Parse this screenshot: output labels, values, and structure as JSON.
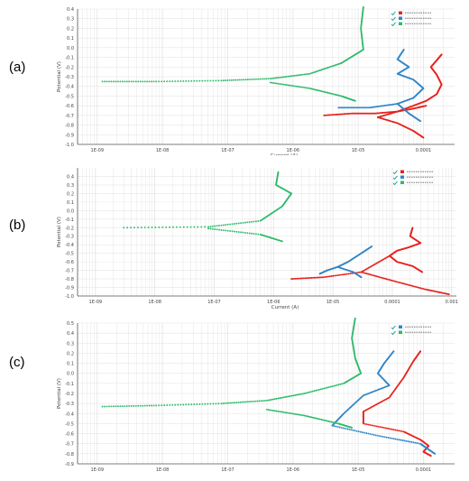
{
  "panels": [
    {
      "label": "(a)"
    },
    {
      "label": "(b)"
    },
    {
      "label": "(c)"
    }
  ],
  "colors": {
    "red": "#e8231e",
    "blue": "#2f86c9",
    "green": "#2dba6a",
    "grid": "#e6e6e6",
    "axis": "#555555"
  },
  "chart_data": [
    {
      "type": "line",
      "ylabel": "Potential (V)",
      "xlabel": "Current (A)",
      "x_scale": "log",
      "xlim": [
        5e-10,
        0.0003
      ],
      "ylim": [
        -1.0,
        0.4
      ],
      "x_ticks": [
        1e-09,
        1e-08,
        1e-07,
        1e-06,
        1e-05,
        0.0001
      ],
      "x_tick_labels": [
        "1E-09",
        "1E-08",
        "1E-07",
        "1E-06",
        "1E-05",
        "0.0001"
      ],
      "y_ticks": [
        0.4,
        0.3,
        0.2,
        0.1,
        0.0,
        -0.1,
        -0.2,
        -0.3,
        -0.4,
        -0.5,
        -0.6,
        -0.7,
        -0.8,
        -0.9,
        -1.0
      ],
      "legend_position": "top-right",
      "series": [
        {
          "color": "red",
          "points": [
            [
              2e-05,
              -0.72
            ],
            [
              4e-05,
              -0.66
            ],
            [
              7e-05,
              -0.6
            ],
            [
              0.00011,
              -0.55
            ],
            [
              0.00016,
              -0.48
            ],
            [
              0.00019,
              -0.38
            ],
            [
              0.00016,
              -0.28
            ],
            [
              0.00013,
              -0.2
            ],
            [
              0.00016,
              -0.13
            ],
            [
              0.00019,
              -0.07
            ]
          ]
        },
        {
          "color": "red",
          "points": [
            [
              0.00011,
              -0.6
            ],
            [
              7e-05,
              -0.63
            ],
            [
              4e-05,
              -0.66
            ],
            [
              1.8e-05,
              -0.68
            ],
            [
              8e-06,
              -0.68
            ],
            [
              3e-06,
              -0.7
            ]
          ]
        },
        {
          "color": "red",
          "points": [
            [
              2e-05,
              -0.72
            ],
            [
              4e-05,
              -0.78
            ],
            [
              7e-05,
              -0.86
            ],
            [
              0.0001,
              -0.93
            ]
          ]
        },
        {
          "color": "blue",
          "points": [
            [
              5e-05,
              -0.02
            ],
            [
              4e-05,
              -0.12
            ],
            [
              6e-05,
              -0.2
            ],
            [
              4e-05,
              -0.27
            ],
            [
              7e-05,
              -0.33
            ],
            [
              0.0001,
              -0.42
            ],
            [
              7e-05,
              -0.52
            ],
            [
              4e-05,
              -0.58
            ],
            [
              1.5e-05,
              -0.62
            ],
            [
              5e-06,
              -0.62
            ]
          ]
        },
        {
          "color": "blue",
          "points": [
            [
              4e-05,
              -0.58
            ],
            [
              6e-05,
              -0.68
            ],
            [
              9e-05,
              -0.76
            ]
          ]
        },
        {
          "color": "green",
          "points": [
            [
              1.2e-05,
              0.42
            ],
            [
              1.1e-05,
              0.2
            ],
            [
              1.2e-05,
              -0.02
            ],
            [
              5.5e-06,
              -0.16
            ],
            [
              1.8e-06,
              -0.27
            ],
            [
              4.5e-07,
              -0.32
            ],
            [
              8e-08,
              -0.34
            ],
            [
              8e-09,
              -0.35
            ],
            [
              1.2e-09,
              -0.35
            ]
          ]
        },
        {
          "color": "green",
          "points": [
            [
              4.5e-07,
              -0.36
            ],
            [
              1.8e-06,
              -0.42
            ],
            [
              5.5e-06,
              -0.5
            ],
            [
              9e-06,
              -0.55
            ]
          ]
        }
      ]
    },
    {
      "type": "line",
      "ylabel": "Potential (V)",
      "xlabel": "Current (A)",
      "x_scale": "log",
      "xlim": [
        5e-10,
        0.0012
      ],
      "ylim": [
        -1.0,
        0.5
      ],
      "x_ticks": [
        1e-09,
        1e-08,
        1e-07,
        1e-06,
        1e-05,
        0.0001,
        0.001
      ],
      "x_tick_labels": [
        "1E-09",
        "1E-08",
        "1E-07",
        "1E-06",
        "1E-05",
        "0.0001",
        "0.001"
      ],
      "y_ticks": [
        0.4,
        0.3,
        0.2,
        0.1,
        0.0,
        -0.1,
        -0.2,
        -0.3,
        -0.4,
        -0.5,
        -0.6,
        -0.7,
        -0.8,
        -0.9,
        -1.0
      ],
      "legend_position": "top-right",
      "series": [
        {
          "color": "red",
          "points": [
            [
              0.00022,
              -0.2
            ],
            [
              0.0002,
              -0.3
            ],
            [
              0.0003,
              -0.38
            ],
            [
              0.00019,
              -0.43
            ],
            [
              0.00012,
              -0.47
            ],
            [
              9e-05,
              -0.53
            ],
            [
              0.00012,
              -0.6
            ],
            [
              0.00022,
              -0.65
            ],
            [
              0.00032,
              -0.72
            ]
          ]
        },
        {
          "color": "red",
          "points": [
            [
              9e-05,
              -0.53
            ],
            [
              3e-05,
              -0.72
            ],
            [
              7e-06,
              -0.78
            ],
            [
              2e-06,
              -0.8
            ]
          ]
        },
        {
          "color": "red",
          "points": [
            [
              3e-05,
              -0.72
            ],
            [
              0.0001,
              -0.82
            ],
            [
              0.00035,
              -0.92
            ],
            [
              0.0009,
              -0.98
            ]
          ]
        },
        {
          "color": "blue",
          "points": [
            [
              4.5e-05,
              -0.42
            ],
            [
              3e-05,
              -0.5
            ],
            [
              1.8e-05,
              -0.6
            ],
            [
              1.2e-05,
              -0.66
            ],
            [
              2.2e-05,
              -0.72
            ],
            [
              3e-05,
              -0.78
            ]
          ]
        },
        {
          "color": "blue",
          "points": [
            [
              1.2e-05,
              -0.66
            ],
            [
              8e-06,
              -0.7
            ],
            [
              6e-06,
              -0.74
            ]
          ]
        },
        {
          "color": "green",
          "points": [
            [
              1.2e-06,
              0.45
            ],
            [
              1.1e-06,
              0.3
            ],
            [
              2e-06,
              0.2
            ],
            [
              1.4e-06,
              0.05
            ],
            [
              6e-07,
              -0.12
            ],
            [
              8e-08,
              -0.19
            ],
            [
              3e-09,
              -0.2
            ]
          ]
        },
        {
          "color": "green",
          "points": [
            [
              8e-08,
              -0.21
            ],
            [
              6e-07,
              -0.28
            ],
            [
              1.4e-06,
              -0.36
            ]
          ]
        }
      ]
    },
    {
      "type": "line",
      "ylabel": "Potential (V)",
      "xlabel": "",
      "x_scale": "log",
      "xlim": [
        5e-10,
        0.0003
      ],
      "ylim": [
        -0.9,
        0.5
      ],
      "x_ticks": [
        1e-09,
        1e-08,
        1e-07,
        1e-06,
        1e-05,
        0.0001
      ],
      "x_tick_labels": [
        "1E-09",
        "1E-08",
        "1E-07",
        "1E-06",
        "1E-05",
        "0.0001"
      ],
      "y_ticks": [
        0.5,
        0.4,
        0.3,
        0.2,
        0.1,
        0.0,
        -0.1,
        -0.2,
        -0.3,
        -0.4,
        -0.5,
        -0.6,
        -0.7,
        -0.8,
        -0.9
      ],
      "legend_position": "top-right",
      "series": [
        {
          "color": "red",
          "points": [
            [
              9e-05,
              0.22
            ],
            [
              7e-05,
              0.12
            ],
            [
              5e-05,
              -0.04
            ],
            [
              3e-05,
              -0.24
            ],
            [
              1.2e-05,
              -0.38
            ],
            [
              1.2e-05,
              -0.5
            ],
            [
              5e-05,
              -0.58
            ],
            [
              9e-05,
              -0.66
            ],
            [
              0.00012,
              -0.72
            ],
            [
              0.0001,
              -0.78
            ],
            [
              0.00013,
              -0.82
            ]
          ]
        },
        {
          "color": "blue",
          "points": [
            [
              3.5e-05,
              0.22
            ],
            [
              2.5e-05,
              0.1
            ],
            [
              2e-05,
              0.0
            ],
            [
              3e-05,
              -0.12
            ],
            [
              1.2e-05,
              -0.22
            ],
            [
              6e-06,
              -0.4
            ],
            [
              4e-06,
              -0.52
            ],
            [
              2e-05,
              -0.62
            ],
            [
              9e-05,
              -0.7
            ],
            [
              0.00011,
              -0.74
            ],
            [
              0.00015,
              -0.8
            ]
          ]
        },
        {
          "color": "green",
          "points": [
            [
              9e-06,
              0.55
            ],
            [
              8e-06,
              0.35
            ],
            [
              9e-06,
              0.15
            ],
            [
              1.1e-05,
              0.0
            ],
            [
              6e-06,
              -0.1
            ],
            [
              1.5e-06,
              -0.2
            ],
            [
              4e-07,
              -0.27
            ],
            [
              8e-08,
              -0.3
            ],
            [
              8e-09,
              -0.32
            ],
            [
              1.2e-09,
              -0.33
            ]
          ]
        },
        {
          "color": "green",
          "points": [
            [
              4e-07,
              -0.36
            ],
            [
              1.5e-06,
              -0.42
            ],
            [
              5e-06,
              -0.5
            ],
            [
              8e-06,
              -0.54
            ]
          ]
        }
      ]
    }
  ]
}
